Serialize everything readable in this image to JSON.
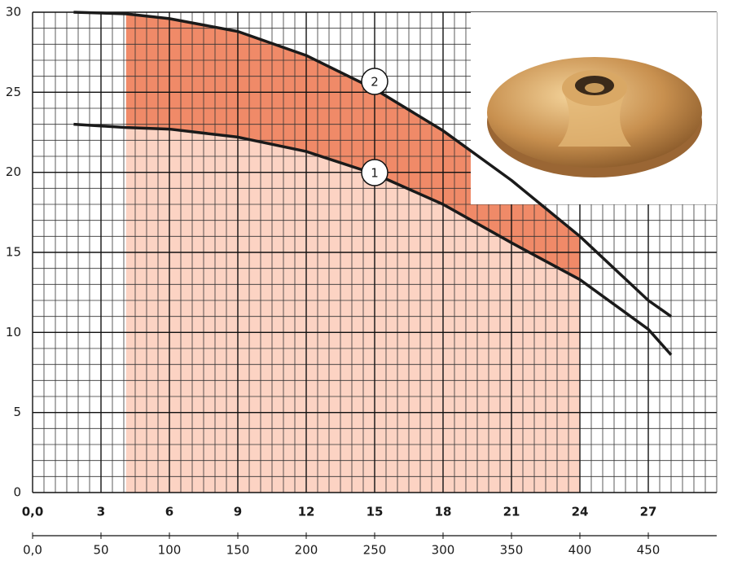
{
  "chart_data": {
    "type": "line",
    "x": [
      1.8,
      4.1,
      6,
      9,
      12,
      15,
      18,
      21,
      24,
      27,
      28
    ],
    "series": [
      {
        "name": "1",
        "color": "#1a1a1a",
        "values": [
          23.0,
          22.8,
          22.7,
          22.2,
          21.3,
          19.9,
          18.0,
          15.6,
          13.3,
          10.2,
          8.6
        ]
      },
      {
        "name": "2",
        "color": "#1a1a1a",
        "values": [
          30.0,
          29.9,
          29.6,
          28.8,
          27.3,
          25.2,
          22.6,
          19.5,
          16.0,
          12.0,
          11.0
        ]
      }
    ],
    "highlight_xlim": [
      4.1,
      24
    ],
    "highlight_colors": [
      "#fcd3c3",
      "#f08a68"
    ],
    "xlim": [
      0,
      30
    ],
    "xticks": [
      {
        "value": 0,
        "label": "0,0"
      },
      3,
      6,
      9,
      12,
      15,
      18,
      21,
      24,
      27
    ],
    "x2lim": [
      0,
      500
    ],
    "x2ticks": [
      {
        "value": 0,
        "label": "0,0"
      },
      50,
      100,
      150,
      200,
      250,
      300,
      350,
      400,
      450
    ],
    "ylim": [
      0,
      30
    ],
    "yticks": [
      0,
      5,
      10,
      15,
      20,
      25,
      30
    ],
    "grid": true
  }
}
